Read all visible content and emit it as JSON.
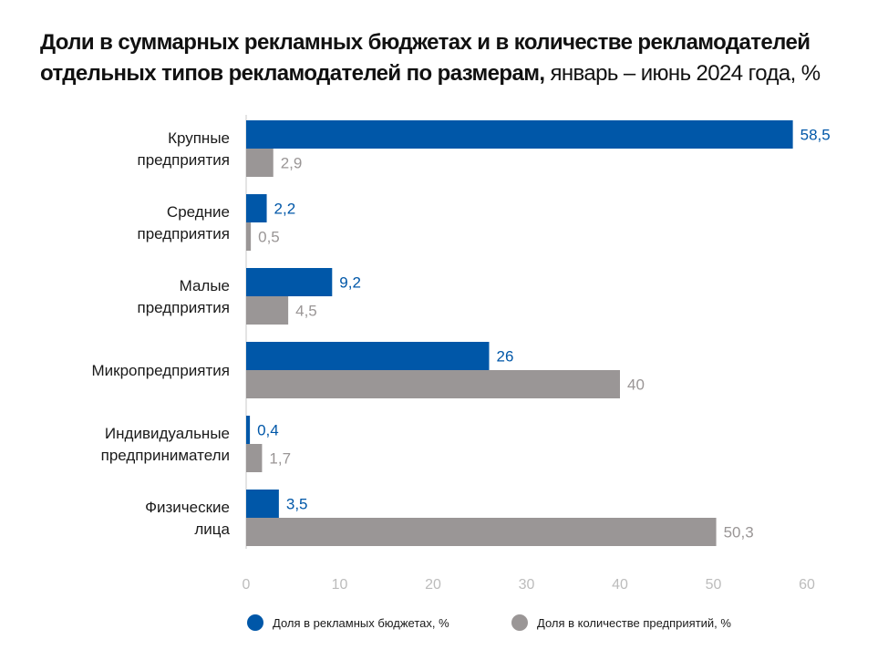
{
  "title": {
    "bold": "Доли в суммарных рекламных бюджетах и в количестве рекламодателей отдельных типов рекламодателей по размерам,",
    "light": " январь – июнь 2024 года, %"
  },
  "colors": {
    "budget": "#0057a8",
    "count": "#9a9696",
    "axis": "#c8c8c8"
  },
  "chart_data": {
    "type": "bar",
    "orientation": "horizontal",
    "title": "Доли в суммарных рекламных бюджетах и в количестве рекламодателей отдельных типов рекламодателей по размерам, январь – июнь 2024 года, %",
    "categories": [
      [
        "Крупные",
        "предприятия"
      ],
      [
        "Средние",
        "предприятия"
      ],
      [
        "Малые",
        "предприятия"
      ],
      [
        "Микропредприятия"
      ],
      [
        "Индивидуальные",
        "предприниматели"
      ],
      [
        "Физические",
        "лица"
      ]
    ],
    "series": [
      {
        "name": "Доля в рекламных бюджетах, %",
        "values": [
          58.5,
          2.2,
          9.2,
          26,
          0.4,
          3.5
        ],
        "labels": [
          "58,5",
          "2,2",
          "9,2",
          "26",
          "0,4",
          "3,5"
        ]
      },
      {
        "name": "Доля в количестве предприятий, %",
        "values": [
          2.9,
          0.5,
          4.5,
          40,
          1.7,
          50.3
        ],
        "labels": [
          "2,9",
          "0,5",
          "4,5",
          "40",
          "1,7",
          "50,3"
        ]
      }
    ],
    "xticks": [
      0,
      10,
      20,
      30,
      40,
      50,
      60
    ],
    "xlim": [
      0,
      60
    ],
    "grid": false,
    "legend": "bottom"
  }
}
